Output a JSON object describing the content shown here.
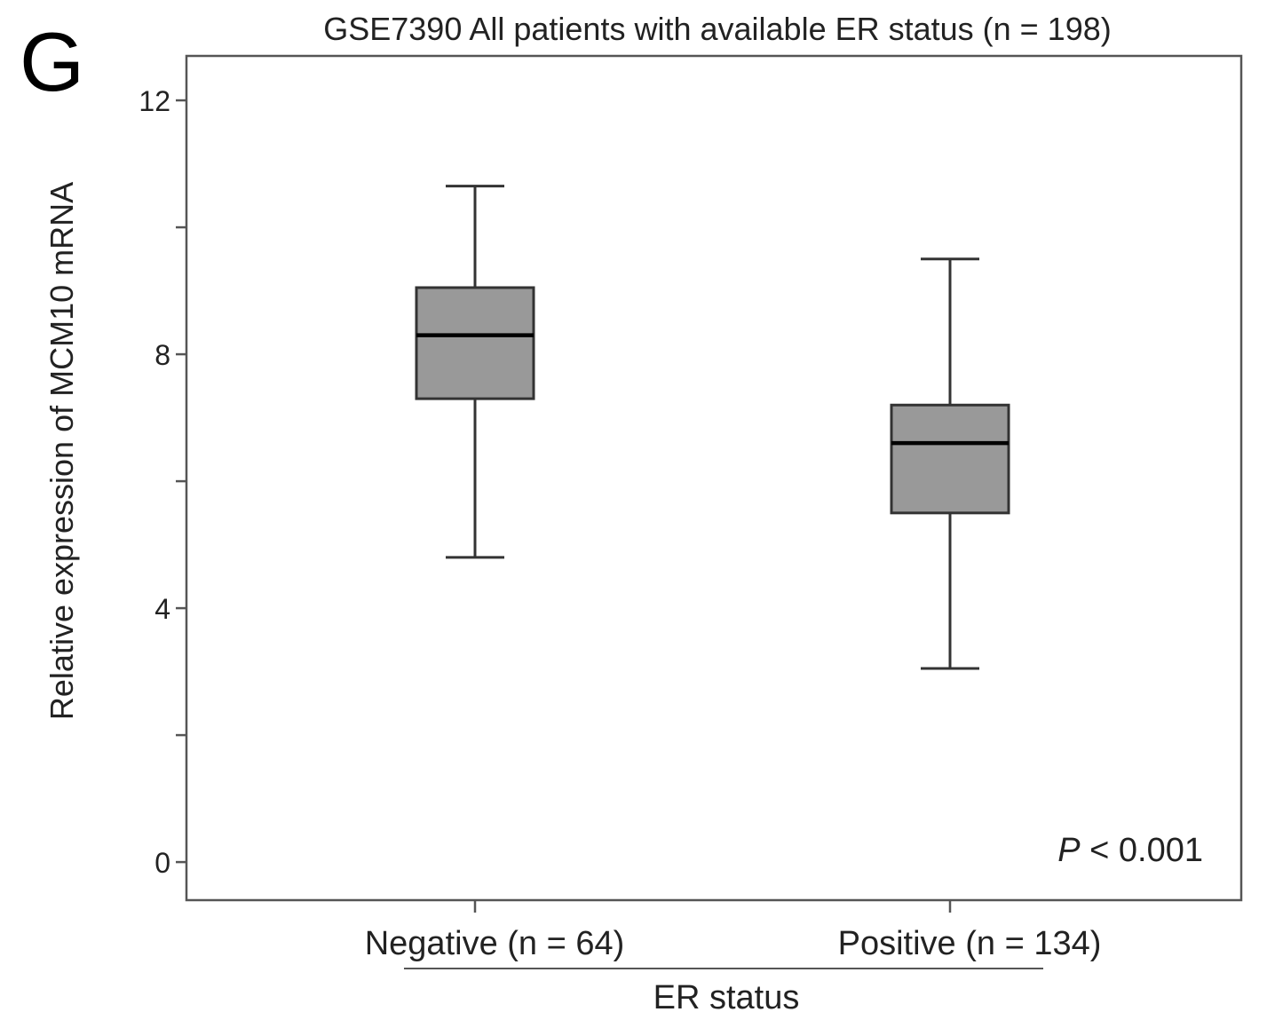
{
  "panel_label": "G",
  "chart_data": {
    "type": "boxplot",
    "title": "GSE7390 All patients with available ER status (n = 198)",
    "xlabel": "ER status",
    "ylabel": "Relative expression of MCM10 mRNA",
    "ylim": [
      -0.6,
      12.7
    ],
    "yticks": [
      0,
      2,
      4,
      6,
      8,
      10,
      12
    ],
    "ytick_labels": [
      "0",
      "",
      "4",
      "",
      "8",
      "",
      "12"
    ],
    "categories": [
      "Negative (n = 64)",
      "Positive (n = 134)"
    ],
    "boxes": [
      {
        "name": "Negative (n = 64)",
        "whisker_low": 4.8,
        "q1": 7.3,
        "median": 8.3,
        "q3": 9.05,
        "whisker_high": 10.65
      },
      {
        "name": "Positive (n = 134)",
        "whisker_low": 3.05,
        "q1": 5.5,
        "median": 6.6,
        "q3": 7.2,
        "whisker_high": 9.5
      }
    ],
    "annotation": {
      "italic": "P",
      "text": " < 0.001"
    },
    "colors": {
      "box_fill": "#999999",
      "stroke": "#333333",
      "median": "#000000",
      "frame": "#555555"
    }
  }
}
